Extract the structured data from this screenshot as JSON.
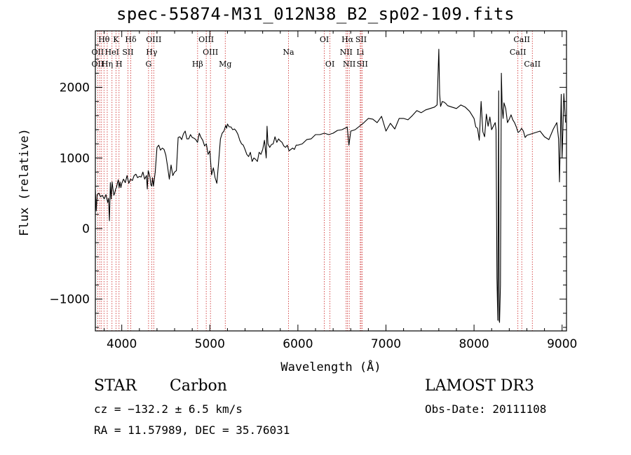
{
  "chart_data": {
    "type": "line",
    "title": "spec-55874-M31_012N38_B2_sp02-109.fits",
    "xlabel": "Wavelength (Å)",
    "ylabel": "Flux (relative)",
    "xlim": [
      3700,
      9050
    ],
    "ylim": [
      -1450,
      2800
    ],
    "x_ticks": [
      4000,
      5000,
      6000,
      7000,
      8000,
      9000
    ],
    "y_ticks": [
      -1000,
      0,
      1000,
      2000
    ],
    "grid": false,
    "series": [
      {
        "x": [
          3700,
          3710,
          3720,
          3740,
          3760,
          3780,
          3800,
          3820,
          3840,
          3850,
          3860,
          3870,
          3880,
          3890,
          3900,
          3910,
          3920,
          3930,
          3940,
          3950,
          3960,
          3970,
          3980,
          3990,
          4000,
          4020,
          4040,
          4060,
          4080,
          4100,
          4120,
          4140,
          4160,
          4180,
          4200,
          4220,
          4240,
          4260,
          4280,
          4290,
          4300,
          4310,
          4320,
          4330,
          4340,
          4350,
          4360,
          4380,
          4400,
          4420,
          4440,
          4460,
          4480,
          4500,
          4520,
          4540,
          4560,
          4580,
          4600,
          4620,
          4640,
          4660,
          4680,
          4700,
          4720,
          4740,
          4760,
          4780,
          4800,
          4820,
          4840,
          4860,
          4880,
          4900,
          4920,
          4940,
          4960,
          4980,
          5000,
          5020,
          5040,
          5060,
          5080,
          5100,
          5120,
          5140,
          5160,
          5180,
          5190,
          5200,
          5220,
          5240,
          5260,
          5280,
          5300,
          5320,
          5340,
          5360,
          5380,
          5400,
          5420,
          5440,
          5460,
          5480,
          5500,
          5520,
          5540,
          5560,
          5580,
          5600,
          5620,
          5640,
          5650,
          5660,
          5680,
          5700,
          5720,
          5740,
          5760,
          5780,
          5800,
          5820,
          5840,
          5860,
          5880,
          5900,
          5920,
          5940,
          5960,
          5980,
          6000,
          6050,
          6100,
          6150,
          6200,
          6250,
          6300,
          6350,
          6400,
          6450,
          6500,
          6550,
          6560,
          6580,
          6600,
          6650,
          6700,
          6750,
          6800,
          6850,
          6900,
          6950,
          7000,
          7050,
          7100,
          7150,
          7200,
          7250,
          7300,
          7350,
          7400,
          7450,
          7500,
          7550,
          7580,
          7600,
          7610,
          7620,
          7640,
          7660,
          7680,
          7700,
          7750,
          7800,
          7850,
          7900,
          7950,
          8000,
          8020,
          8040,
          8060,
          8080,
          8100,
          8120,
          8140,
          8160,
          8180,
          8200,
          8220,
          8240,
          8250,
          8260,
          8270,
          8280,
          8285,
          8290,
          8300,
          8310,
          8320,
          8330,
          8340,
          8360,
          8380,
          8400,
          8420,
          8440,
          8460,
          8480,
          8500,
          8520,
          8540,
          8560,
          8580,
          8600,
          8650,
          8700,
          8750,
          8800,
          8850,
          8900,
          8940,
          8960,
          8970,
          8980,
          8990,
          9000,
          9010,
          9020,
          9040
        ],
        "y": [
          550,
          250,
          480,
          500,
          450,
          470,
          420,
          480,
          370,
          430,
          110,
          650,
          420,
          660,
          560,
          470,
          500,
          560,
          580,
          640,
          690,
          580,
          660,
          580,
          640,
          700,
          650,
          750,
          640,
          700,
          680,
          750,
          770,
          720,
          740,
          730,
          800,
          700,
          750,
          560,
          820,
          780,
          730,
          620,
          600,
          720,
          600,
          800,
          1150,
          1180,
          1110,
          1140,
          1120,
          1040,
          880,
          700,
          900,
          750,
          800,
          820,
          1290,
          1300,
          1260,
          1340,
          1380,
          1270,
          1270,
          1330,
          1290,
          1280,
          1260,
          1220,
          1350,
          1290,
          1250,
          1170,
          1200,
          1050,
          1100,
          760,
          860,
          720,
          640,
          950,
          1270,
          1350,
          1380,
          1460,
          1420,
          1480,
          1440,
          1440,
          1400,
          1410,
          1380,
          1330,
          1250,
          1200,
          1180,
          1120,
          1050,
          1020,
          1080,
          950,
          1000,
          980,
          950,
          1080,
          1050,
          1120,
          1250,
          1000,
          1450,
          1200,
          1150,
          1190,
          1200,
          1300,
          1220,
          1270,
          1240,
          1220,
          1170,
          1150,
          1180,
          1100,
          1120,
          1140,
          1120,
          1180,
          1180,
          1200,
          1260,
          1270,
          1330,
          1330,
          1350,
          1330,
          1350,
          1390,
          1400,
          1430,
          1440,
          1180,
          1380,
          1400,
          1450,
          1500,
          1560,
          1550,
          1500,
          1590,
          1380,
          1490,
          1410,
          1560,
          1560,
          1540,
          1600,
          1670,
          1640,
          1680,
          1700,
          1720,
          1750,
          2540,
          1900,
          1730,
          1800,
          1790,
          1770,
          1740,
          1720,
          1700,
          1750,
          1720,
          1660,
          1560,
          1440,
          1420,
          1250,
          1800,
          1370,
          1300,
          1620,
          1450,
          1580,
          1400,
          1450,
          1500,
          1400,
          -700,
          -1300,
          1950,
          -1300,
          -1330,
          -800,
          2200,
          1700,
          1560,
          1780,
          1700,
          1500,
          1550,
          1610,
          1540,
          1500,
          1440,
          1360,
          1380,
          1420,
          1380,
          1290,
          1320,
          1340,
          1360,
          1380,
          1300,
          1260,
          1410,
          1500,
          1270,
          660,
          1250,
          1900,
          1000,
          1440,
          1910,
          1500
        ]
      }
    ],
    "line_labels": [
      {
        "name": "Hθ",
        "row": 1,
        "x": 3798
      },
      {
        "name": "K",
        "row": 1,
        "x": 3934
      },
      {
        "name": "Hδ",
        "row": 1,
        "x": 4102
      },
      {
        "name": "OIII",
        "row": 1,
        "x": 4363
      },
      {
        "name": "OIII",
        "row": 1,
        "x": 4959
      },
      {
        "name": "OI",
        "row": 1,
        "x": 6300
      },
      {
        "name": "Hα",
        "row": 1,
        "x": 6563
      },
      {
        "name": "SII",
        "row": 1,
        "x": 6717
      },
      {
        "name": "CaII",
        "row": 1,
        "x": 8542
      },
      {
        "name": "OII",
        "row": 2,
        "x": 3727
      },
      {
        "name": "HeI",
        "row": 2,
        "x": 3889
      },
      {
        "name": "SII",
        "row": 2,
        "x": 4070
      },
      {
        "name": "Hγ",
        "row": 2,
        "x": 4340
      },
      {
        "name": "OIII",
        "row": 2,
        "x": 5007
      },
      {
        "name": "Na",
        "row": 2,
        "x": 5893
      },
      {
        "name": "NII",
        "row": 2,
        "x": 6548
      },
      {
        "name": "Li",
        "row": 2,
        "x": 6708
      },
      {
        "name": "CaII",
        "row": 2,
        "x": 8498
      },
      {
        "name": "OII",
        "row": 3,
        "x": 3727
      },
      {
        "name": "Hη",
        "row": 3,
        "x": 3835
      },
      {
        "name": "H",
        "row": 3,
        "x": 3969
      },
      {
        "name": "G",
        "row": 3,
        "x": 4304
      },
      {
        "name": "Hβ",
        "row": 3,
        "x": 4861
      },
      {
        "name": "Mg",
        "row": 3,
        "x": 5175
      },
      {
        "name": "OI",
        "row": 3,
        "x": 6364
      },
      {
        "name": "NII",
        "row": 3,
        "x": 6583
      },
      {
        "name": "SII",
        "row": 3,
        "x": 6731
      },
      {
        "name": "CaII",
        "row": 3,
        "x": 8662
      }
    ],
    "line_markers_x": [
      3727,
      3750,
      3770,
      3798,
      3835,
      3889,
      3934,
      3969,
      4070,
      4102,
      4304,
      4340,
      4363,
      4861,
      4959,
      5007,
      5175,
      5893,
      6300,
      6364,
      6548,
      6563,
      6583,
      6708,
      6717,
      6731,
      8498,
      8542,
      8662
    ],
    "marker_color": "#cc2222",
    "line_color": "#000000"
  },
  "footer": {
    "class_label": "STAR",
    "subclass_label": "Carbon",
    "cz_text": "cz = −132.2 ± 6.5 km/s",
    "coords_text": "RA =  11.57989, DEC =  35.76031",
    "survey_text": "LAMOST DR3",
    "obsdate_text": "Obs-Date: 20111108"
  }
}
